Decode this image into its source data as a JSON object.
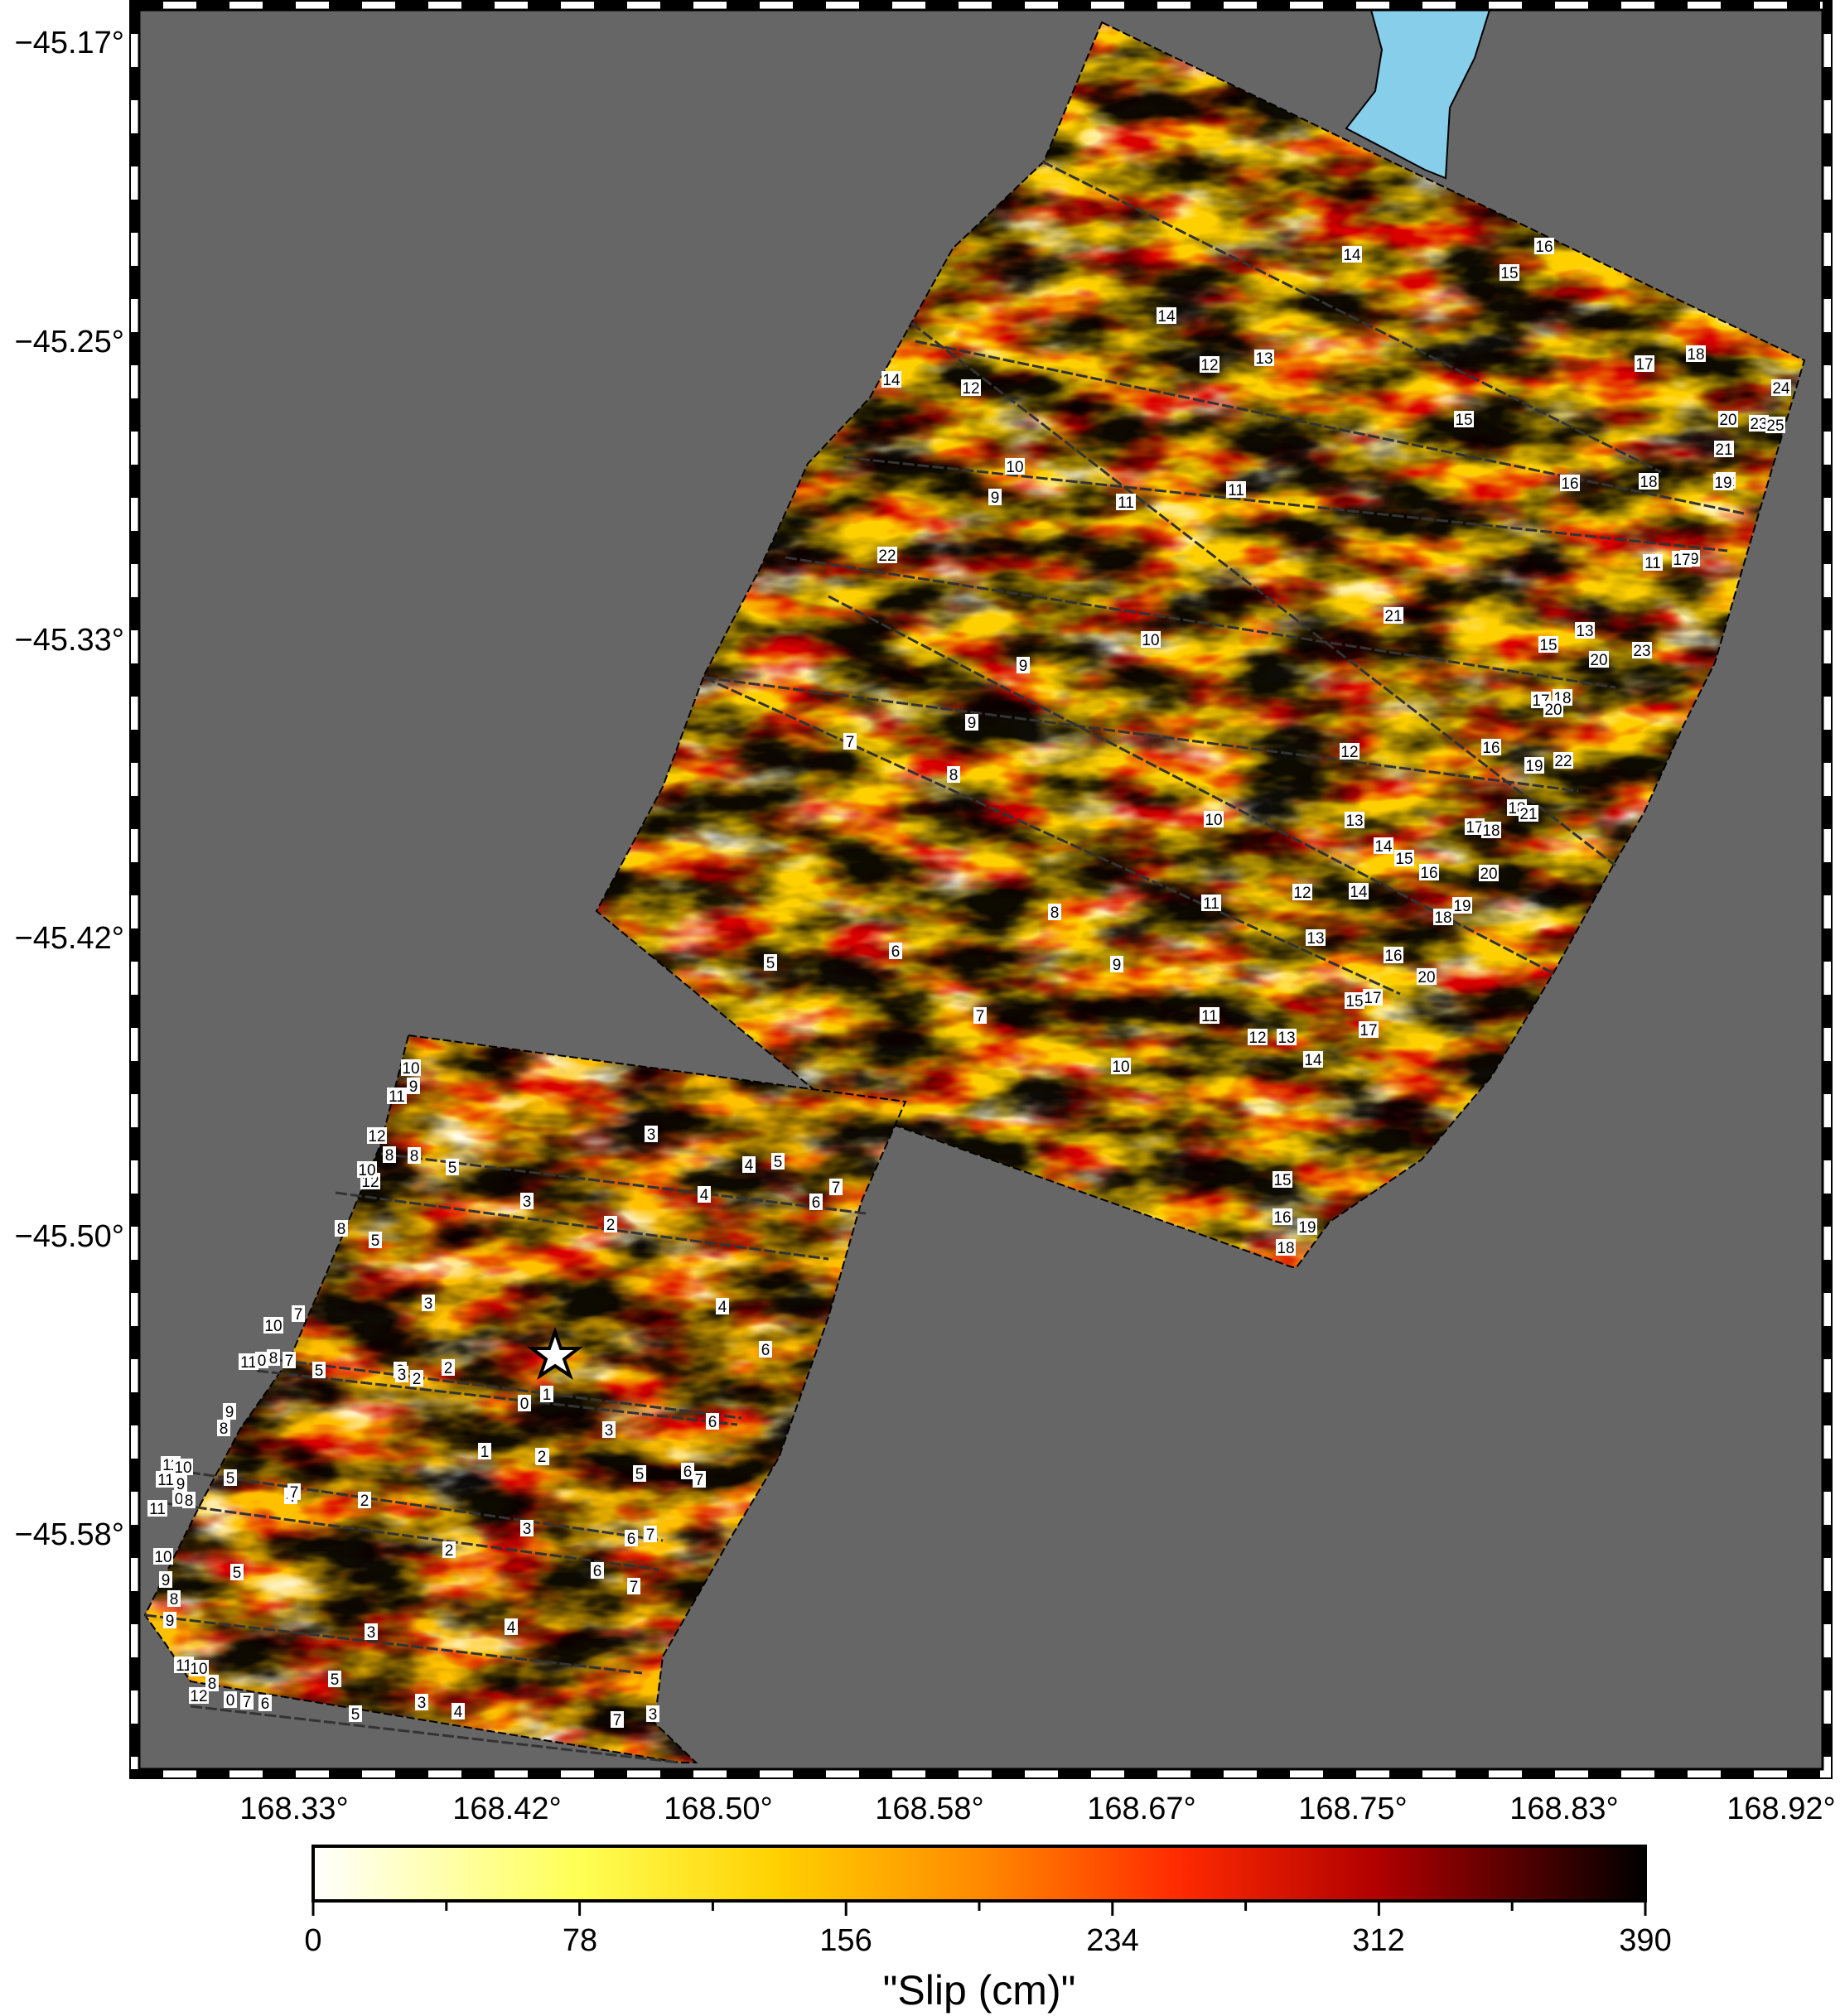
{
  "map": {
    "y_axis_labels": [
      "−45.17°",
      "−45.25°",
      "−45.33°",
      "−45.42°",
      "−45.50°",
      "−45.58°"
    ],
    "x_axis_labels": [
      "168.33°",
      "168.42°",
      "168.50°",
      "168.58°",
      "168.67°",
      "168.75°",
      "168.83°",
      "168.92°"
    ],
    "colors": {
      "background": "#666666",
      "water": "#87ceeb",
      "slip_low": "#ffffff",
      "slip_mid": "#ff8c00",
      "slip_high": "#000000"
    },
    "epicenter_icon": "star-icon"
  },
  "colorbar": {
    "title": "\"Slip (cm)\"",
    "tick_labels": [
      "0",
      "78",
      "156",
      "234",
      "312",
      "390"
    ],
    "min": 0,
    "max": 390
  },
  "fault_depth_contours": {
    "north_segment_labels": [
      "16",
      "14",
      "15",
      "14",
      "12",
      "13",
      "17",
      "18",
      "24",
      "14",
      "12",
      "15",
      "20",
      "23",
      "25",
      "21",
      "10",
      "22",
      "9",
      "11",
      "11",
      "16",
      "18",
      "19",
      "22",
      "11",
      "19",
      "21",
      "13",
      "17",
      "10",
      "9",
      "15",
      "20",
      "23",
      "17",
      "18",
      "20",
      "7",
      "9",
      "12",
      "16",
      "8",
      "19",
      "22",
      "10",
      "13",
      "18",
      "21",
      "17",
      "18",
      "14",
      "15",
      "16",
      "20",
      "12",
      "14",
      "19",
      "11",
      "18",
      "8",
      "13",
      "5",
      "6",
      "16",
      "9",
      "20",
      "15",
      "17",
      "7",
      "11",
      "12",
      "13",
      "17",
      "14",
      "10",
      "15",
      "16",
      "19",
      "18"
    ],
    "south_segment_labels": [
      "10",
      "9",
      "11",
      "8",
      "3",
      "12",
      "8",
      "5",
      "4",
      "5",
      "12",
      "10",
      "7",
      "3",
      "4",
      "6",
      "8",
      "2",
      "5",
      "4",
      "10",
      "7",
      "3",
      "11",
      "0",
      "8",
      "7",
      "3",
      "6",
      "5",
      "2",
      "3",
      "2",
      "6",
      "1",
      "0",
      "9",
      "8",
      "3",
      "4",
      "2",
      "1",
      "5",
      "6",
      "7",
      "11",
      "10",
      "4",
      "2",
      "5",
      "11",
      "9",
      "7",
      "11",
      "0",
      "8",
      "3",
      "6",
      "7",
      "10",
      "5",
      "2",
      "6",
      "9",
      "7",
      "8",
      "9",
      "4",
      "3",
      "11",
      "10",
      "5",
      "8",
      "12",
      "0",
      "7",
      "6",
      "5",
      "3",
      "4",
      "7",
      "3"
    ]
  }
}
